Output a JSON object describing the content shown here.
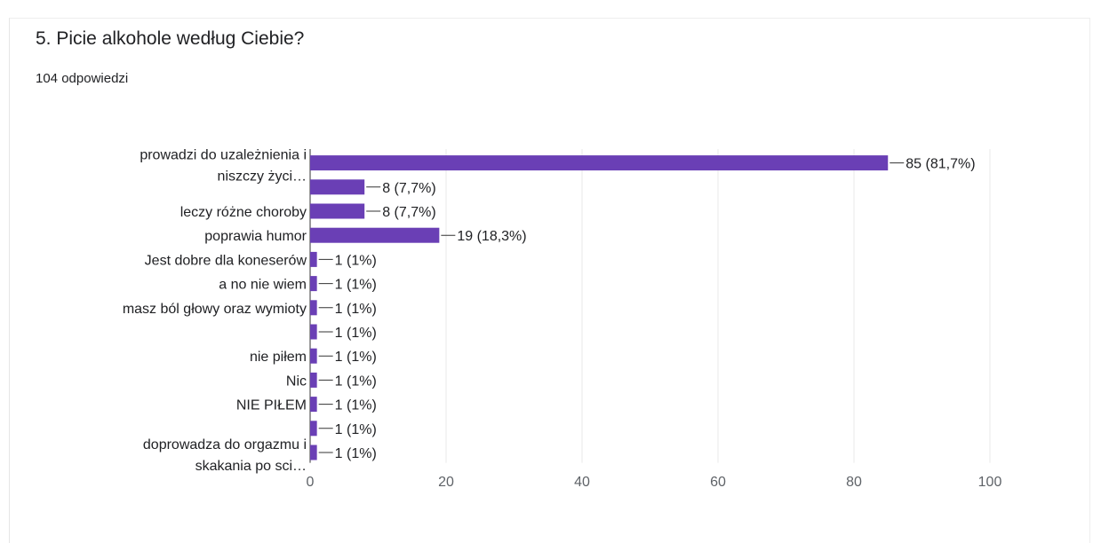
{
  "question": {
    "title": "5. Picie alkohole według Ciebie?",
    "response_count": "104 odpowiedzi"
  },
  "colors": {
    "bar": "#6a3fb5",
    "grid": "#e8e8e8",
    "axis": "#333333",
    "label": "#202124",
    "tick": "#5f6368"
  },
  "chart_data": {
    "type": "bar",
    "orientation": "horizontal",
    "categories": [
      [
        "prowadzi do uzależnienia i",
        "niszczy życi…"
      ],
      [],
      [
        "leczy różne choroby"
      ],
      [
        "poprawia humor"
      ],
      [
        "Jest dobre dla koneserów"
      ],
      [
        "a no nie wiem"
      ],
      [
        "masz ból głowy oraz wymioty"
      ],
      [],
      [
        "nie piłem"
      ],
      [
        "Nic"
      ],
      [
        "NIE PIŁEM"
      ],
      [],
      [
        "doprowadza do orgazmu i",
        "skakania po sci…"
      ]
    ],
    "values": [
      85,
      8,
      8,
      19,
      1,
      1,
      1,
      1,
      1,
      1,
      1,
      1,
      1
    ],
    "value_labels": [
      "85 (81,7%)",
      "8 (7,7%)",
      "8 (7,7%)",
      "19 (18,3%)",
      "1 (1%)",
      "1 (1%)",
      "1 (1%)",
      "1 (1%)",
      "1 (1%)",
      "1 (1%)",
      "1 (1%)",
      "1 (1%)",
      "1 (1%)"
    ],
    "xlim": [
      0,
      100
    ],
    "xticks": [
      "0",
      "20",
      "40",
      "60",
      "80",
      "100"
    ],
    "grid": true
  }
}
